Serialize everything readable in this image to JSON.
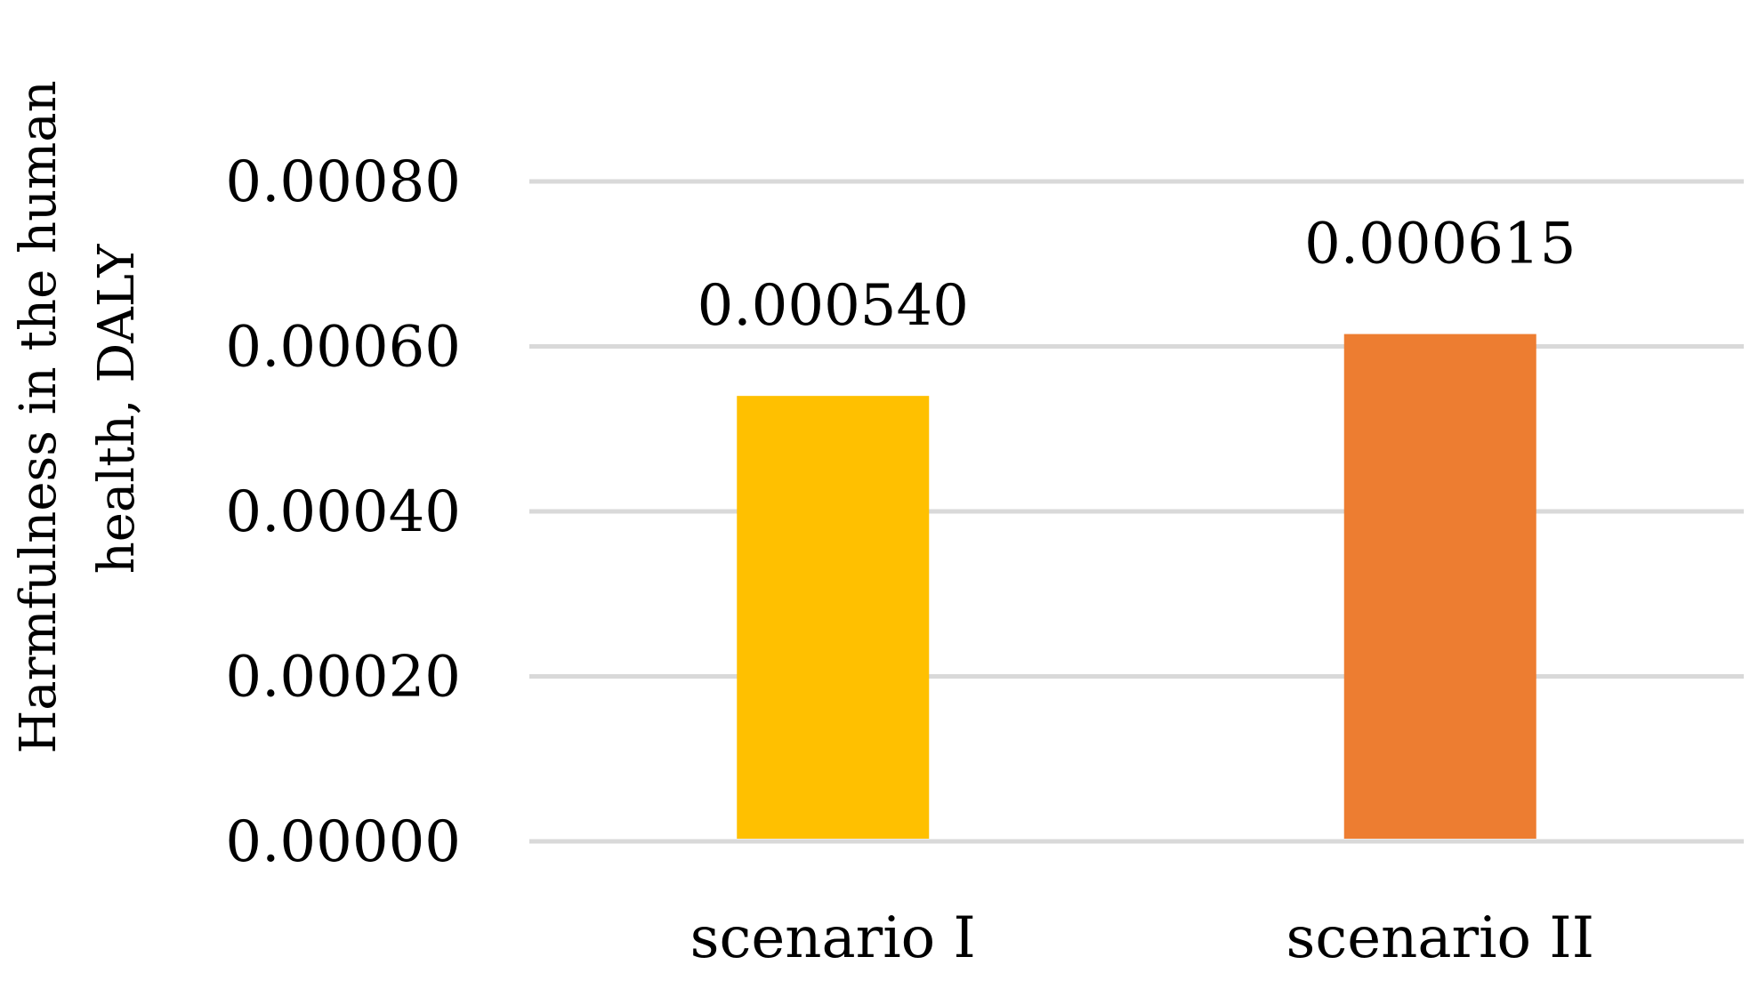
{
  "chart_data": {
    "type": "bar",
    "categories": [
      "scenario I",
      "scenario II"
    ],
    "values": [
      0.00054,
      0.000615
    ],
    "data_labels": [
      "0.000540",
      "0.000615"
    ],
    "colors": [
      "#FFC000",
      "#ED7D31"
    ],
    "ylabel_lines": [
      "Harmfulness in the human",
      "health, DALY"
    ],
    "ylim": [
      0,
      0.0008
    ],
    "yticks": [
      0.0,
      0.0002,
      0.0004,
      0.0006,
      0.0008
    ],
    "ytick_labels": [
      "0.00000",
      "0.00020",
      "0.00040",
      "0.00060",
      "0.00080"
    ],
    "grid": true,
    "gridline_color": "#D9D9D9"
  }
}
